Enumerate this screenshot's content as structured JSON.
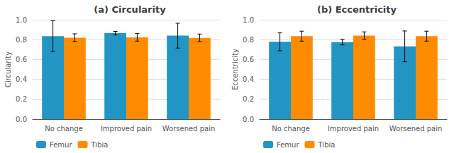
{
  "chart_data": [
    {
      "type": "bar",
      "title": "(a) Circularity",
      "ylabel": "Circularity",
      "categories": [
        "No change",
        "Improved pain",
        "Worsened pain"
      ],
      "series": [
        {
          "name": "Femur",
          "color": "#2196C4",
          "values": [
            0.835,
            0.865,
            0.84
          ],
          "errors": [
            0.155,
            0.018,
            0.125
          ]
        },
        {
          "name": "Tibia",
          "color": "#FF8C00",
          "values": [
            0.82,
            0.823,
            0.818
          ],
          "errors": [
            0.038,
            0.038,
            0.038
          ]
        }
      ],
      "ylim": [
        0.0,
        1.0
      ],
      "yticks": [
        {
          "value": 0.0,
          "label": "0.0"
        },
        0.2,
        0.4,
        0.6,
        0.8,
        {
          "value": 1.0,
          "label": "1.0"
        }
      ],
      "grid": true,
      "legend": "lower left"
    },
    {
      "type": "bar",
      "title": "(b) Eccentricity",
      "ylabel": "Eccentricity",
      "categories": [
        "No change",
        "Improved pain",
        "Worsened pain"
      ],
      "series": [
        {
          "name": "Femur",
          "color": "#2196C4",
          "values": [
            0.778,
            0.775,
            0.732
          ],
          "errors": [
            0.09,
            0.028,
            0.155
          ]
        },
        {
          "name": "Tibia",
          "color": "#FF8C00",
          "values": [
            0.835,
            0.84,
            0.835
          ],
          "errors": [
            0.05,
            0.038,
            0.05
          ]
        }
      ],
      "ylim": [
        0.0,
        1.0
      ],
      "yticks": [
        {
          "value": 0.0,
          "label": "0.0"
        },
        0.2,
        0.4,
        0.6,
        0.8,
        {
          "value": 1.0,
          "label": "1.0"
        }
      ],
      "grid": true,
      "legend": "lower left"
    }
  ]
}
